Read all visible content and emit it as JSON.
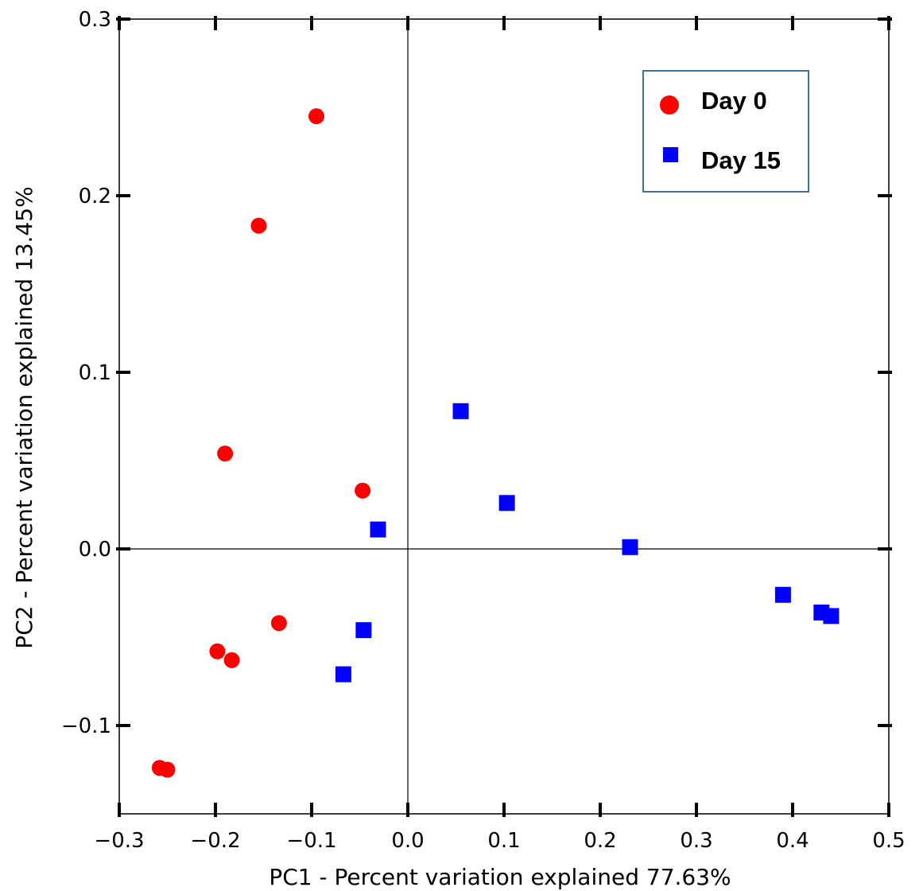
{
  "chart_data": {
    "type": "scatter",
    "xlabel": "PC1 - Percent variation explained 77.63%",
    "ylabel": "PC2 - Percent variation explained 13.45%",
    "xlim": [
      -0.3,
      0.5
    ],
    "ylim": [
      -0.15,
      0.3
    ],
    "x_ticks": [
      "−0.3",
      "−0.2",
      "−0.1",
      "0.0",
      "0.1",
      "0.2",
      "0.3",
      "0.4",
      "0.5"
    ],
    "x_tick_values": [
      -0.3,
      -0.2,
      -0.1,
      0.0,
      0.1,
      0.2,
      0.3,
      0.4,
      0.5
    ],
    "y_ticks": [
      "−0.1",
      "0.0",
      "0.1",
      "0.2",
      "0.3"
    ],
    "y_tick_values": [
      -0.1,
      0.0,
      0.1,
      0.2,
      0.3
    ],
    "zero_lines": true,
    "grid": false,
    "legend_position": "top-right",
    "series": [
      {
        "name": "Day 0",
        "marker": "circle",
        "color": "#ff0000",
        "points": [
          {
            "x": -0.095,
            "y": 0.245
          },
          {
            "x": -0.155,
            "y": 0.183
          },
          {
            "x": -0.19,
            "y": 0.054
          },
          {
            "x": -0.047,
            "y": 0.033
          },
          {
            "x": -0.134,
            "y": -0.042
          },
          {
            "x": -0.198,
            "y": -0.058
          },
          {
            "x": -0.183,
            "y": -0.063
          },
          {
            "x": -0.258,
            "y": -0.124
          },
          {
            "x": -0.25,
            "y": -0.125
          }
        ]
      },
      {
        "name": "Day 15",
        "marker": "square",
        "color": "#0000ff",
        "points": [
          {
            "x": 0.055,
            "y": 0.078
          },
          {
            "x": 0.103,
            "y": 0.026
          },
          {
            "x": -0.031,
            "y": 0.011
          },
          {
            "x": 0.231,
            "y": 0.001
          },
          {
            "x": -0.046,
            "y": -0.046
          },
          {
            "x": -0.067,
            "y": -0.071
          },
          {
            "x": 0.39,
            "y": -0.026
          },
          {
            "x": 0.43,
            "y": -0.036
          },
          {
            "x": 0.44,
            "y": -0.038
          }
        ]
      }
    ]
  }
}
